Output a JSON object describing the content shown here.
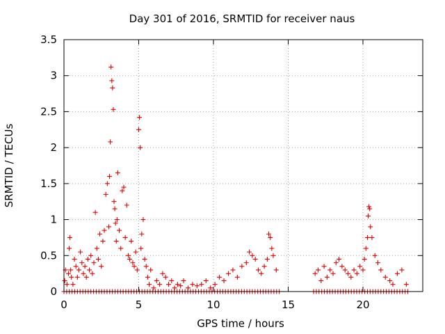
{
  "chart_data": {
    "type": "scatter",
    "title": "Day 301 of 2016, SRMTID for receiver naus",
    "xlabel": "GPS time / hours",
    "ylabel": "SRMTID / TECUs",
    "xlim": [
      0,
      24
    ],
    "ylim": [
      0,
      3.5
    ],
    "xticks": [
      0,
      5,
      10,
      15,
      20
    ],
    "xtick_labels": [
      "0",
      "5",
      "10",
      "15",
      "20"
    ],
    "yticks": [
      0,
      0.5,
      1,
      1.5,
      2,
      2.5,
      3,
      3.5
    ],
    "ytick_labels": [
      "0",
      "0.5",
      "1",
      "1.5",
      "2",
      "2.5",
      "3",
      "3.5"
    ],
    "grid": true,
    "marker": "+",
    "series": [
      {
        "name": "SRMTID",
        "color": "#e00000",
        "x": [
          0.05,
          0.1,
          0.2,
          0.3,
          0.35,
          0.4,
          0.45,
          0.5,
          0.6,
          0.7,
          0.8,
          0.9,
          1.0,
          1.1,
          1.2,
          1.3,
          1.4,
          1.5,
          1.6,
          1.7,
          1.8,
          1.9,
          2.0,
          2.1,
          2.2,
          2.3,
          2.4,
          2.5,
          2.6,
          2.7,
          2.8,
          2.9,
          3.0,
          3.05,
          3.1,
          3.15,
          3.2,
          3.25,
          3.3,
          3.35,
          3.4,
          3.45,
          3.5,
          3.55,
          3.6,
          3.7,
          3.8,
          3.9,
          4.0,
          4.1,
          4.2,
          4.3,
          4.4,
          4.5,
          4.6,
          4.7,
          4.8,
          4.9,
          5.0,
          5.05,
          5.1,
          5.15,
          5.2,
          5.3,
          5.4,
          5.5,
          5.6,
          5.7,
          5.8,
          6.0,
          6.2,
          6.4,
          6.6,
          6.8,
          7.0,
          7.2,
          7.4,
          7.6,
          7.8,
          8.0,
          8.3,
          8.6,
          8.9,
          9.2,
          9.5,
          9.8,
          10.1,
          10.4,
          10.7,
          11.0,
          11.3,
          11.6,
          11.9,
          12.2,
          12.4,
          12.6,
          12.8,
          13.0,
          13.2,
          13.4,
          13.6,
          13.7,
          13.8,
          13.9,
          14.0,
          14.2,
          16.8,
          17.0,
          17.2,
          17.4,
          17.6,
          17.8,
          18.0,
          18.2,
          18.4,
          18.6,
          18.8,
          19.0,
          19.2,
          19.4,
          19.6,
          19.8,
          20.0,
          20.1,
          20.2,
          20.3,
          20.35,
          20.4,
          20.45,
          20.5,
          20.6,
          20.8,
          21.0,
          21.2,
          21.5,
          21.8,
          22.0,
          22.3,
          22.6,
          22.9
        ],
        "y": [
          0.15,
          0.3,
          0.1,
          0.25,
          0.6,
          0.75,
          0.3,
          0.2,
          0.1,
          0.45,
          0.35,
          0.2,
          0.3,
          0.55,
          0.4,
          0.25,
          0.35,
          0.2,
          0.45,
          0.3,
          0.5,
          0.25,
          0.4,
          1.1,
          0.6,
          0.45,
          0.8,
          0.35,
          0.7,
          0.85,
          1.35,
          1.5,
          0.9,
          1.6,
          2.08,
          3.12,
          2.93,
          2.83,
          2.53,
          1.25,
          1.15,
          0.95,
          0.7,
          1.0,
          1.65,
          0.85,
          0.6,
          1.4,
          1.45,
          0.75,
          1.2,
          0.5,
          0.45,
          0.7,
          0.4,
          0.35,
          0.55,
          0.3,
          2.25,
          2.42,
          2.0,
          0.6,
          0.8,
          1.0,
          0.45,
          0.35,
          0.2,
          0.1,
          0.3,
          0.05,
          0.15,
          0.1,
          0.25,
          0.2,
          0.1,
          0.15,
          0.05,
          0.1,
          0.08,
          0.15,
          0.05,
          0.1,
          0.08,
          0.1,
          0.15,
          0.05,
          0.1,
          0.2,
          0.15,
          0.25,
          0.3,
          0.2,
          0.35,
          0.4,
          0.55,
          0.5,
          0.45,
          0.3,
          0.25,
          0.35,
          0.45,
          0.8,
          0.75,
          0.6,
          0.5,
          0.3,
          0.25,
          0.3,
          0.15,
          0.35,
          0.2,
          0.3,
          0.25,
          0.4,
          0.45,
          0.35,
          0.3,
          0.25,
          0.2,
          0.3,
          0.25,
          0.35,
          0.3,
          0.45,
          0.6,
          0.75,
          1.05,
          1.18,
          1.15,
          0.9,
          0.75,
          0.5,
          0.4,
          0.3,
          0.2,
          0.15,
          0.1,
          0.25,
          0.3,
          0.1
        ]
      }
    ],
    "zero_band": {
      "x_ranges": [
        [
          0,
          14.5
        ],
        [
          16.7,
          23.0
        ]
      ],
      "y": 0.0
    }
  }
}
